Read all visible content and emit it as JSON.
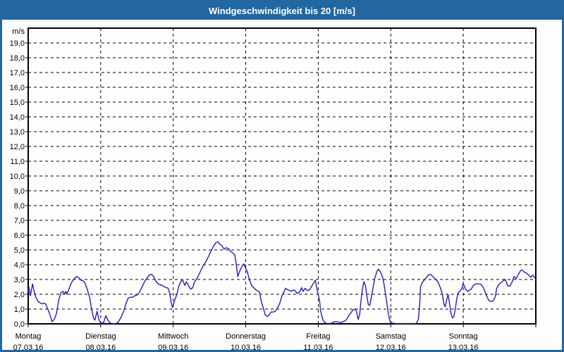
{
  "window": {
    "title": "Windgeschwindigkeit bis 20 [m/s]"
  },
  "colors": {
    "frame": "#2267a0",
    "titlebar_bg": "#2267a0",
    "title_text": "#ffffff",
    "plot_bg": "#fdfefd",
    "grid": "#000000",
    "axis": "#000000",
    "label_text": "#000000",
    "line": "#1f1fc8"
  },
  "chart_data": {
    "type": "line",
    "title": "Windgeschwindigkeit bis 20 [m/s]",
    "y_unit_label": "m/s",
    "ylim": [
      0,
      20
    ],
    "y_tick_step": 1.0,
    "y_tick_label_style": "comma-decimal one place (e.g. 19,0)",
    "xlim_days": [
      0,
      7
    ],
    "grid": "dashed",
    "legend": "none",
    "x_axis_days": [
      {
        "name": "Montag",
        "date": "07.03.16"
      },
      {
        "name": "Dienstag",
        "date": "08.03.16"
      },
      {
        "name": "Mittwoch",
        "date": "09.03.16"
      },
      {
        "name": "Donnerstag",
        "date": "10.03.16"
      },
      {
        "name": "Freitag",
        "date": "11.03.16"
      },
      {
        "name": "Samstag",
        "date": "12.03.16"
      },
      {
        "name": "Sonntag",
        "date": "13.03.16"
      }
    ],
    "series": [
      {
        "name": "Windgeschwindigkeit",
        "unit": "m/s",
        "x_unit": "days since Montag 07.03.16 00:00",
        "points": [
          [
            0,
            2.2
          ],
          [
            0.01,
            2.5
          ],
          [
            0.03,
            1.9
          ],
          [
            0.06,
            2.7
          ],
          [
            0.09,
            2.0
          ],
          [
            0.11,
            1.75
          ],
          [
            0.14,
            1.5
          ],
          [
            0.17,
            1.4
          ],
          [
            0.19,
            1.35
          ],
          [
            0.22,
            1.4
          ],
          [
            0.24,
            1.35
          ],
          [
            0.27,
            1.0
          ],
          [
            0.3,
            0.6
          ],
          [
            0.33,
            0.15
          ],
          [
            0.36,
            0.3
          ],
          [
            0.39,
            0.7
          ],
          [
            0.42,
            1.6
          ],
          [
            0.45,
            2.1
          ],
          [
            0.48,
            2.2
          ],
          [
            0.5,
            2.0
          ],
          [
            0.52,
            2.2
          ],
          [
            0.53,
            2.0
          ],
          [
            0.55,
            2.2
          ],
          [
            0.58,
            2.6
          ],
          [
            0.61,
            2.9
          ],
          [
            0.64,
            3.1
          ],
          [
            0.67,
            3.2
          ],
          [
            0.7,
            3.1
          ],
          [
            0.73,
            2.95
          ],
          [
            0.76,
            2.9
          ],
          [
            0.78,
            2.8
          ],
          [
            0.81,
            2.4
          ],
          [
            0.85,
            1.75
          ],
          [
            0.87,
            1.1
          ],
          [
            0.9,
            0.4
          ],
          [
            0.92,
            0.25
          ],
          [
            0.95,
            0.85
          ],
          [
            0.98,
            0.2
          ],
          [
            1.01,
            0.05
          ],
          [
            1.04,
            0.1
          ],
          [
            1.07,
            0.55
          ],
          [
            1.1,
            0.25
          ],
          [
            1.13,
            0.05
          ],
          [
            1.17,
            0.02
          ],
          [
            1.21,
            0.03
          ],
          [
            1.24,
            0.1
          ],
          [
            1.28,
            0.45
          ],
          [
            1.32,
            0.9
          ],
          [
            1.35,
            1.4
          ],
          [
            1.38,
            1.75
          ],
          [
            1.41,
            1.8
          ],
          [
            1.44,
            1.8
          ],
          [
            1.47,
            1.9
          ],
          [
            1.5,
            1.95
          ],
          [
            1.53,
            2.1
          ],
          [
            1.56,
            2.4
          ],
          [
            1.58,
            2.6
          ],
          [
            1.61,
            2.9
          ],
          [
            1.64,
            3.1
          ],
          [
            1.67,
            3.3
          ],
          [
            1.7,
            3.35
          ],
          [
            1.73,
            3.2
          ],
          [
            1.76,
            2.9
          ],
          [
            1.79,
            2.7
          ],
          [
            1.82,
            2.65
          ],
          [
            1.85,
            2.6
          ],
          [
            1.88,
            2.5
          ],
          [
            1.91,
            2.45
          ],
          [
            1.93,
            2.4
          ],
          [
            1.95,
            2.1
          ],
          [
            1.97,
            1.5
          ],
          [
            1.99,
            1.1
          ],
          [
            2.02,
            1.6
          ],
          [
            2.05,
            2.0
          ],
          [
            2.08,
            2.6
          ],
          [
            2.11,
            2.9
          ],
          [
            2.13,
            2.95
          ],
          [
            2.16,
            2.6
          ],
          [
            2.18,
            2.85
          ],
          [
            2.21,
            2.6
          ],
          [
            2.24,
            2.35
          ],
          [
            2.27,
            2.45
          ],
          [
            2.29,
            2.8
          ],
          [
            2.33,
            3.1
          ],
          [
            2.37,
            3.5
          ],
          [
            2.41,
            3.9
          ],
          [
            2.45,
            4.2
          ],
          [
            2.49,
            4.6
          ],
          [
            2.53,
            5.0
          ],
          [
            2.56,
            5.3
          ],
          [
            2.59,
            5.5
          ],
          [
            2.62,
            5.55
          ],
          [
            2.64,
            5.4
          ],
          [
            2.67,
            5.3
          ],
          [
            2.7,
            5.05
          ],
          [
            2.73,
            5.15
          ],
          [
            2.76,
            5.1
          ],
          [
            2.79,
            4.9
          ],
          [
            2.82,
            4.8
          ],
          [
            2.85,
            4.65
          ],
          [
            2.87,
            4.0
          ],
          [
            2.89,
            3.2
          ],
          [
            2.92,
            3.6
          ],
          [
            2.95,
            3.9
          ],
          [
            2.97,
            4.05
          ],
          [
            2.99,
            3.85
          ],
          [
            3.02,
            3.55
          ],
          [
            3.05,
            3.0
          ],
          [
            3.08,
            2.6
          ],
          [
            3.11,
            2.45
          ],
          [
            3.14,
            2.3
          ],
          [
            3.17,
            2.2
          ],
          [
            3.19,
            2.15
          ],
          [
            3.21,
            1.6
          ],
          [
            3.24,
            1.1
          ],
          [
            3.27,
            0.6
          ],
          [
            3.3,
            0.5
          ],
          [
            3.32,
            0.6
          ],
          [
            3.35,
            0.8
          ],
          [
            3.38,
            0.8
          ],
          [
            3.41,
            0.85
          ],
          [
            3.44,
            1.1
          ],
          [
            3.47,
            1.4
          ],
          [
            3.5,
            1.9
          ],
          [
            3.53,
            2.2
          ],
          [
            3.55,
            2.4
          ],
          [
            3.58,
            2.3
          ],
          [
            3.61,
            2.25
          ],
          [
            3.63,
            2.2
          ],
          [
            3.66,
            2.3
          ],
          [
            3.68,
            2.25
          ],
          [
            3.71,
            2.05
          ],
          [
            3.74,
            2.15
          ],
          [
            3.77,
            2.45
          ],
          [
            3.79,
            2.2
          ],
          [
            3.82,
            2.4
          ],
          [
            3.85,
            2.25
          ],
          [
            3.88,
            2.3
          ],
          [
            3.91,
            2.55
          ],
          [
            3.94,
            2.8
          ],
          [
            3.96,
            2.95
          ],
          [
            3.98,
            2.4
          ],
          [
            4.0,
            2.0
          ],
          [
            4.02,
            1.5
          ],
          [
            4.03,
            0.95
          ],
          [
            4.05,
            0.5
          ],
          [
            4.07,
            0.2
          ],
          [
            4.1,
            0.05
          ],
          [
            4.13,
            0.03
          ],
          [
            4.16,
            0.03
          ],
          [
            4.19,
            0.05
          ],
          [
            4.22,
            0.15
          ],
          [
            4.25,
            0.15
          ],
          [
            4.28,
            0.12
          ],
          [
            4.31,
            0.08
          ],
          [
            4.34,
            0.15
          ],
          [
            4.37,
            0.2
          ],
          [
            4.39,
            0.3
          ],
          [
            4.42,
            0.55
          ],
          [
            4.45,
            0.75
          ],
          [
            4.48,
            0.95
          ],
          [
            4.51,
            1.0
          ],
          [
            4.53,
            0.8
          ],
          [
            4.55,
            0.3
          ],
          [
            4.57,
            0.6
          ],
          [
            4.59,
            1.6
          ],
          [
            4.61,
            2.4
          ],
          [
            4.63,
            2.85
          ],
          [
            4.65,
            2.6
          ],
          [
            4.67,
            1.9
          ],
          [
            4.69,
            1.3
          ],
          [
            4.71,
            1.25
          ],
          [
            4.72,
            1.5
          ],
          [
            4.75,
            2.3
          ],
          [
            4.78,
            3.1
          ],
          [
            4.81,
            3.55
          ],
          [
            4.83,
            3.7
          ],
          [
            4.86,
            3.5
          ],
          [
            4.89,
            3.1
          ],
          [
            4.91,
            2.6
          ],
          [
            4.94,
            1.6
          ],
          [
            4.97,
            0.6
          ],
          [
            4.99,
            0.15
          ],
          [
            5.02,
            0.05
          ],
          [
            5.06,
            0.02
          ],
          [
            5.1,
            0.02
          ],
          [
            5.15,
            0.02
          ],
          [
            5.2,
            0.02
          ],
          [
            5.25,
            0.02
          ],
          [
            5.3,
            0.02
          ],
          [
            5.35,
            0.02
          ],
          [
            5.38,
            0.3
          ],
          [
            5.4,
            1.4
          ],
          [
            5.41,
            2.5
          ],
          [
            5.44,
            2.85
          ],
          [
            5.47,
            3.0
          ],
          [
            5.5,
            3.2
          ],
          [
            5.53,
            3.35
          ],
          [
            5.56,
            3.3
          ],
          [
            5.59,
            3.15
          ],
          [
            5.62,
            3.0
          ],
          [
            5.65,
            2.85
          ],
          [
            5.68,
            2.5
          ],
          [
            5.71,
            2.05
          ],
          [
            5.73,
            1.4
          ],
          [
            5.75,
            1.15
          ],
          [
            5.77,
            1.6
          ],
          [
            5.79,
            2.0
          ],
          [
            5.81,
            1.4
          ],
          [
            5.83,
            0.7
          ],
          [
            5.85,
            0.4
          ],
          [
            5.87,
            0.5
          ],
          [
            5.89,
            1.0
          ],
          [
            5.91,
            1.7
          ],
          [
            5.93,
            2.1
          ],
          [
            5.96,
            2.25
          ],
          [
            5.98,
            2.4
          ],
          [
            6.0,
            2.75
          ],
          [
            6.03,
            2.35
          ],
          [
            6.06,
            2.2
          ],
          [
            6.09,
            2.3
          ],
          [
            6.11,
            2.35
          ],
          [
            6.14,
            2.6
          ],
          [
            6.17,
            2.7
          ],
          [
            6.2,
            2.7
          ],
          [
            6.23,
            2.7
          ],
          [
            6.26,
            2.6
          ],
          [
            6.29,
            2.3
          ],
          [
            6.32,
            1.9
          ],
          [
            6.35,
            1.6
          ],
          [
            6.38,
            1.5
          ],
          [
            6.41,
            1.55
          ],
          [
            6.44,
            1.8
          ],
          [
            6.46,
            2.4
          ],
          [
            6.49,
            2.65
          ],
          [
            6.52,
            2.8
          ],
          [
            6.55,
            2.9
          ],
          [
            6.58,
            3.0
          ],
          [
            6.61,
            2.6
          ],
          [
            6.64,
            2.55
          ],
          [
            6.67,
            2.8
          ],
          [
            6.7,
            3.2
          ],
          [
            6.73,
            3.05
          ],
          [
            6.76,
            3.35
          ],
          [
            6.79,
            3.6
          ],
          [
            6.81,
            3.65
          ],
          [
            6.84,
            3.5
          ],
          [
            6.87,
            3.45
          ],
          [
            6.9,
            3.3
          ],
          [
            6.93,
            3.15
          ],
          [
            6.96,
            3.3
          ],
          [
            6.98,
            3.15
          ],
          [
            7.0,
            3.05
          ]
        ]
      }
    ]
  }
}
